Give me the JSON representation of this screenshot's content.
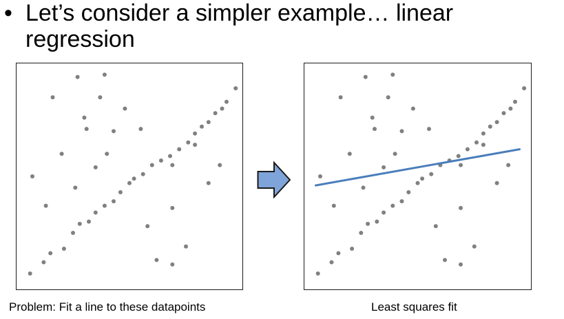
{
  "slide": {
    "bullet": "•",
    "title": "Let’s consider a simpler example… linear regression"
  },
  "left_plot": {
    "caption": "Problem: Fit a line to these datapoints"
  },
  "right_plot": {
    "caption": "Least squares fit"
  },
  "colors": {
    "points": "#808080",
    "fit_line": "#4a7ebb",
    "arrow_fill": "#7fa4d9",
    "arrow_stroke": "#1a1a1a",
    "frame": "#1a1a1a"
  },
  "icons": {
    "arrow": "right-arrow-icon"
  },
  "chart_data": [
    {
      "type": "scatter",
      "title": "",
      "xlabel": "",
      "ylabel": "",
      "xlim": [
        0,
        100
      ],
      "ylim": [
        0,
        100
      ],
      "grid": false,
      "legend": "none",
      "points": [
        [
          6,
          7
        ],
        [
          12,
          12
        ],
        [
          15,
          16
        ],
        [
          21,
          18
        ],
        [
          25,
          25
        ],
        [
          28,
          29
        ],
        [
          32,
          30
        ],
        [
          35,
          34
        ],
        [
          39,
          37
        ],
        [
          43,
          39
        ],
        [
          46,
          43
        ],
        [
          50,
          47
        ],
        [
          52,
          49
        ],
        [
          56,
          51
        ],
        [
          60,
          55
        ],
        [
          64,
          57
        ],
        [
          68,
          59
        ],
        [
          72,
          62
        ],
        [
          76,
          65
        ],
        [
          79,
          69
        ],
        [
          82,
          72
        ],
        [
          85,
          74
        ],
        [
          88,
          78
        ],
        [
          91,
          80
        ],
        [
          93,
          83
        ],
        [
          97,
          89
        ],
        [
          7,
          50
        ],
        [
          13,
          37
        ],
        [
          16,
          85
        ],
        [
          20,
          60
        ],
        [
          26,
          45
        ],
        [
          27,
          94
        ],
        [
          30,
          76
        ],
        [
          31,
          71
        ],
        [
          35,
          54
        ],
        [
          37,
          85
        ],
        [
          39,
          95
        ],
        [
          40,
          60
        ],
        [
          43,
          70
        ],
        [
          48,
          80
        ],
        [
          55,
          71
        ],
        [
          58,
          28
        ],
        [
          62,
          13
        ],
        [
          69,
          55
        ],
        [
          69,
          36
        ],
        [
          69,
          11
        ],
        [
          75,
          19
        ],
        [
          79,
          64
        ],
        [
          85,
          47
        ],
        [
          90,
          55
        ]
      ]
    },
    {
      "type": "scatter",
      "title": "",
      "xlabel": "",
      "ylabel": "",
      "xlim": [
        0,
        100
      ],
      "ylim": [
        0,
        100
      ],
      "grid": false,
      "legend": "none",
      "points": [
        [
          6,
          7
        ],
        [
          12,
          12
        ],
        [
          15,
          16
        ],
        [
          21,
          18
        ],
        [
          25,
          25
        ],
        [
          28,
          29
        ],
        [
          32,
          30
        ],
        [
          35,
          34
        ],
        [
          39,
          37
        ],
        [
          43,
          39
        ],
        [
          46,
          43
        ],
        [
          50,
          47
        ],
        [
          52,
          49
        ],
        [
          56,
          51
        ],
        [
          60,
          55
        ],
        [
          64,
          57
        ],
        [
          68,
          59
        ],
        [
          72,
          62
        ],
        [
          76,
          65
        ],
        [
          79,
          69
        ],
        [
          82,
          72
        ],
        [
          85,
          74
        ],
        [
          88,
          78
        ],
        [
          91,
          80
        ],
        [
          93,
          83
        ],
        [
          97,
          89
        ],
        [
          7,
          50
        ],
        [
          13,
          37
        ],
        [
          16,
          85
        ],
        [
          20,
          60
        ],
        [
          26,
          45
        ],
        [
          27,
          94
        ],
        [
          30,
          76
        ],
        [
          31,
          71
        ],
        [
          35,
          54
        ],
        [
          37,
          85
        ],
        [
          39,
          95
        ],
        [
          40,
          60
        ],
        [
          43,
          70
        ],
        [
          48,
          80
        ],
        [
          55,
          71
        ],
        [
          58,
          28
        ],
        [
          62,
          13
        ],
        [
          69,
          55
        ],
        [
          69,
          36
        ],
        [
          69,
          11
        ],
        [
          75,
          19
        ],
        [
          79,
          64
        ],
        [
          85,
          47
        ],
        [
          90,
          55
        ]
      ],
      "fit_line": {
        "x": [
          5,
          95
        ],
        "y": [
          46,
          62
        ]
      }
    }
  ]
}
